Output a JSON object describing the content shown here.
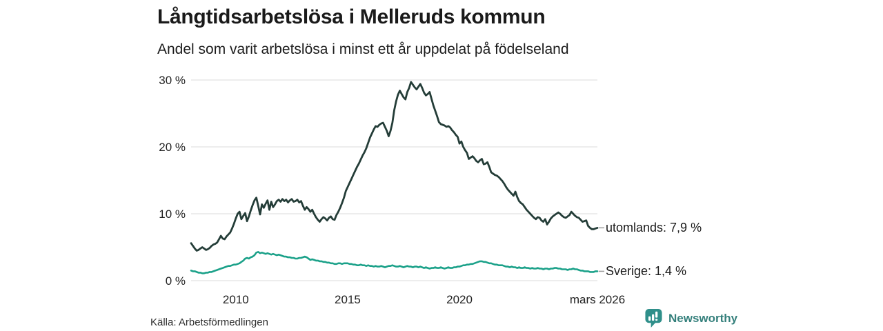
{
  "page": {
    "brand": {
      "name": "Newsworthy",
      "icon": "newsworthy-speech-bubble-bar-chart",
      "color": "#35807c",
      "icon_color": "#2f8f8a"
    }
  },
  "chart_data": {
    "type": "line",
    "title": "Långtidsarbetslösa i Melleruds kommun",
    "subtitle": "Andel som varit arbetslösa i minst ett år uppdelat på födelseland",
    "source": "Källa: Arbetsförmedlingen",
    "grid": true,
    "legend_position": "end-of-line-labels",
    "colors": {
      "grid": "#e2e2e2",
      "text": "#222222",
      "leader_dash": "#9b9b9b"
    },
    "x_axis": {
      "start": "2008-01",
      "end": "2026-03",
      "frequency": "monthly",
      "ticks": [
        {
          "t": 2010.0,
          "label": "2010"
        },
        {
          "t": 2015.0,
          "label": "2015"
        },
        {
          "t": 2020.0,
          "label": "2020"
        },
        {
          "t": 2026.1667,
          "label": "mars 2026"
        }
      ]
    },
    "y_axis": {
      "unit": "%",
      "range": [
        0,
        30
      ],
      "ticks": [
        {
          "value": 30,
          "label": "30 %"
        },
        {
          "value": 20,
          "label": "20 %"
        },
        {
          "value": 10,
          "label": "10 %"
        },
        {
          "value": 0,
          "label": "0 %"
        }
      ]
    },
    "series": [
      {
        "name": "utomlands",
        "label": "utomlands: 7,9 %",
        "end_value": "7,9 %",
        "color": "#243d38",
        "stroke_width": 2.8,
        "values": [
          5.6,
          5.2,
          4.8,
          4.5,
          4.6,
          4.8,
          5.0,
          4.8,
          4.6,
          4.7,
          4.9,
          5.2,
          5.4,
          5.5,
          5.7,
          6.2,
          6.7,
          6.3,
          6.2,
          6.6,
          6.9,
          7.2,
          7.8,
          8.5,
          9.3,
          10.0,
          10.3,
          9.2,
          9.7,
          10.1,
          8.9,
          9.6,
          10.5,
          11.3,
          12.0,
          12.4,
          11.2,
          9.9,
          11.4,
          10.9,
          11.5,
          12.0,
          10.6,
          11.8,
          11.0,
          11.4,
          11.9,
          12.1,
          11.8,
          12.2,
          11.9,
          12.1,
          11.7,
          12.0,
          12.2,
          11.8,
          11.9,
          12.1,
          11.7,
          11.9,
          11.2,
          10.6,
          11.0,
          10.7,
          10.3,
          10.6,
          10.0,
          9.5,
          9.1,
          8.8,
          9.2,
          9.5,
          9.3,
          9.0,
          9.4,
          9.6,
          9.2,
          9.1,
          9.8,
          10.3,
          10.9,
          11.6,
          12.4,
          13.4,
          14.0,
          14.6,
          15.2,
          15.8,
          16.4,
          17.0,
          17.5,
          18.1,
          18.7,
          19.2,
          19.8,
          20.6,
          21.4,
          22.0,
          22.6,
          23.1,
          23.0,
          23.3,
          23.5,
          23.6,
          23.0,
          22.4,
          21.6,
          22.4,
          23.6,
          25.5,
          26.8,
          27.8,
          28.4,
          27.9,
          27.4,
          27.1,
          28.2,
          28.8,
          29.7,
          29.3,
          28.9,
          28.6,
          29.0,
          29.4,
          28.8,
          28.1,
          27.7,
          27.9,
          28.2,
          27.2,
          26.2,
          25.4,
          24.6,
          23.7,
          23.4,
          23.3,
          23.2,
          23.0,
          23.1,
          22.9,
          22.5,
          22.2,
          21.8,
          21.5,
          20.5,
          20.8,
          20.0,
          19.5,
          19.1,
          18.2,
          18.4,
          18.6,
          18.3,
          17.9,
          17.7,
          18.0,
          18.2,
          17.4,
          17.5,
          17.7,
          17.0,
          16.2,
          16.0,
          15.8,
          15.7,
          15.5,
          15.2,
          14.9,
          14.5,
          14.0,
          13.6,
          13.3,
          13.0,
          12.7,
          13.3,
          12.5,
          11.9,
          11.6,
          11.4,
          11.0,
          10.6,
          10.3,
          10.0,
          9.7,
          9.4,
          9.2,
          9.5,
          9.4,
          9.0,
          8.8,
          9.2,
          8.4,
          8.8,
          9.3,
          9.6,
          9.8,
          10.0,
          10.2,
          10.0,
          9.7,
          9.5,
          9.4,
          9.6,
          9.8,
          10.3,
          10.0,
          9.7,
          9.5,
          9.4,
          9.1,
          8.8,
          8.9,
          9.0,
          8.2,
          7.9,
          7.7,
          7.7,
          7.8,
          7.9
        ]
      },
      {
        "name": "Sverige",
        "label": "Sverige: 1,4 %",
        "end_value": "1,4 %",
        "color": "#1ba189",
        "stroke_width": 2.6,
        "values": [
          1.5,
          1.4,
          1.4,
          1.3,
          1.2,
          1.2,
          1.1,
          1.1,
          1.2,
          1.2,
          1.3,
          1.3,
          1.4,
          1.5,
          1.6,
          1.7,
          1.8,
          1.9,
          2.0,
          2.1,
          2.2,
          2.2,
          2.3,
          2.4,
          2.4,
          2.5,
          2.6,
          2.8,
          3.0,
          3.3,
          3.4,
          3.3,
          3.5,
          3.6,
          3.8,
          4.2,
          4.3,
          4.1,
          4.2,
          4.1,
          4.0,
          4.1,
          4.0,
          3.9,
          4.0,
          3.9,
          3.8,
          3.9,
          3.8,
          3.7,
          3.6,
          3.6,
          3.5,
          3.5,
          3.4,
          3.4,
          3.3,
          3.3,
          3.4,
          3.4,
          3.5,
          3.6,
          3.5,
          3.3,
          3.1,
          3.2,
          3.1,
          3.0,
          3.0,
          2.9,
          2.9,
          2.8,
          2.8,
          2.7,
          2.7,
          2.6,
          2.6,
          2.5,
          2.5,
          2.6,
          2.6,
          2.5,
          2.6,
          2.6,
          2.6,
          2.5,
          2.5,
          2.4,
          2.4,
          2.3,
          2.3,
          2.4,
          2.3,
          2.3,
          2.2,
          2.3,
          2.2,
          2.2,
          2.1,
          2.2,
          2.1,
          2.1,
          2.2,
          2.1,
          2.0,
          2.1,
          2.2,
          2.2,
          2.3,
          2.2,
          2.1,
          2.1,
          2.2,
          2.1,
          2.0,
          2.1,
          2.2,
          2.1,
          2.1,
          2.0,
          2.1,
          2.1,
          2.0,
          2.1,
          2.0,
          1.9,
          2.0,
          1.9,
          1.8,
          1.9,
          1.9,
          2.0,
          1.9,
          1.9,
          2.0,
          1.9,
          1.8,
          1.9,
          2.0,
          1.9,
          1.9,
          2.0,
          2.0,
          2.1,
          2.1,
          2.2,
          2.3,
          2.3,
          2.4,
          2.4,
          2.5,
          2.5,
          2.6,
          2.7,
          2.8,
          2.9,
          2.9,
          2.8,
          2.8,
          2.7,
          2.6,
          2.6,
          2.5,
          2.4,
          2.4,
          2.3,
          2.3,
          2.3,
          2.2,
          2.1,
          2.1,
          2.0,
          2.1,
          2.0,
          2.0,
          1.9,
          2.0,
          1.9,
          1.9,
          2.0,
          1.9,
          1.9,
          1.8,
          1.9,
          1.8,
          1.8,
          1.9,
          1.8,
          1.8,
          1.7,
          1.8,
          1.8,
          1.7,
          1.8,
          1.8,
          1.9,
          1.9,
          1.8,
          1.8,
          1.7,
          1.7,
          1.7,
          1.6,
          1.7,
          1.7,
          1.8,
          1.7,
          1.7,
          1.6,
          1.5,
          1.5,
          1.4,
          1.4,
          1.4,
          1.3,
          1.3,
          1.3,
          1.4,
          1.4
        ]
      }
    ]
  }
}
